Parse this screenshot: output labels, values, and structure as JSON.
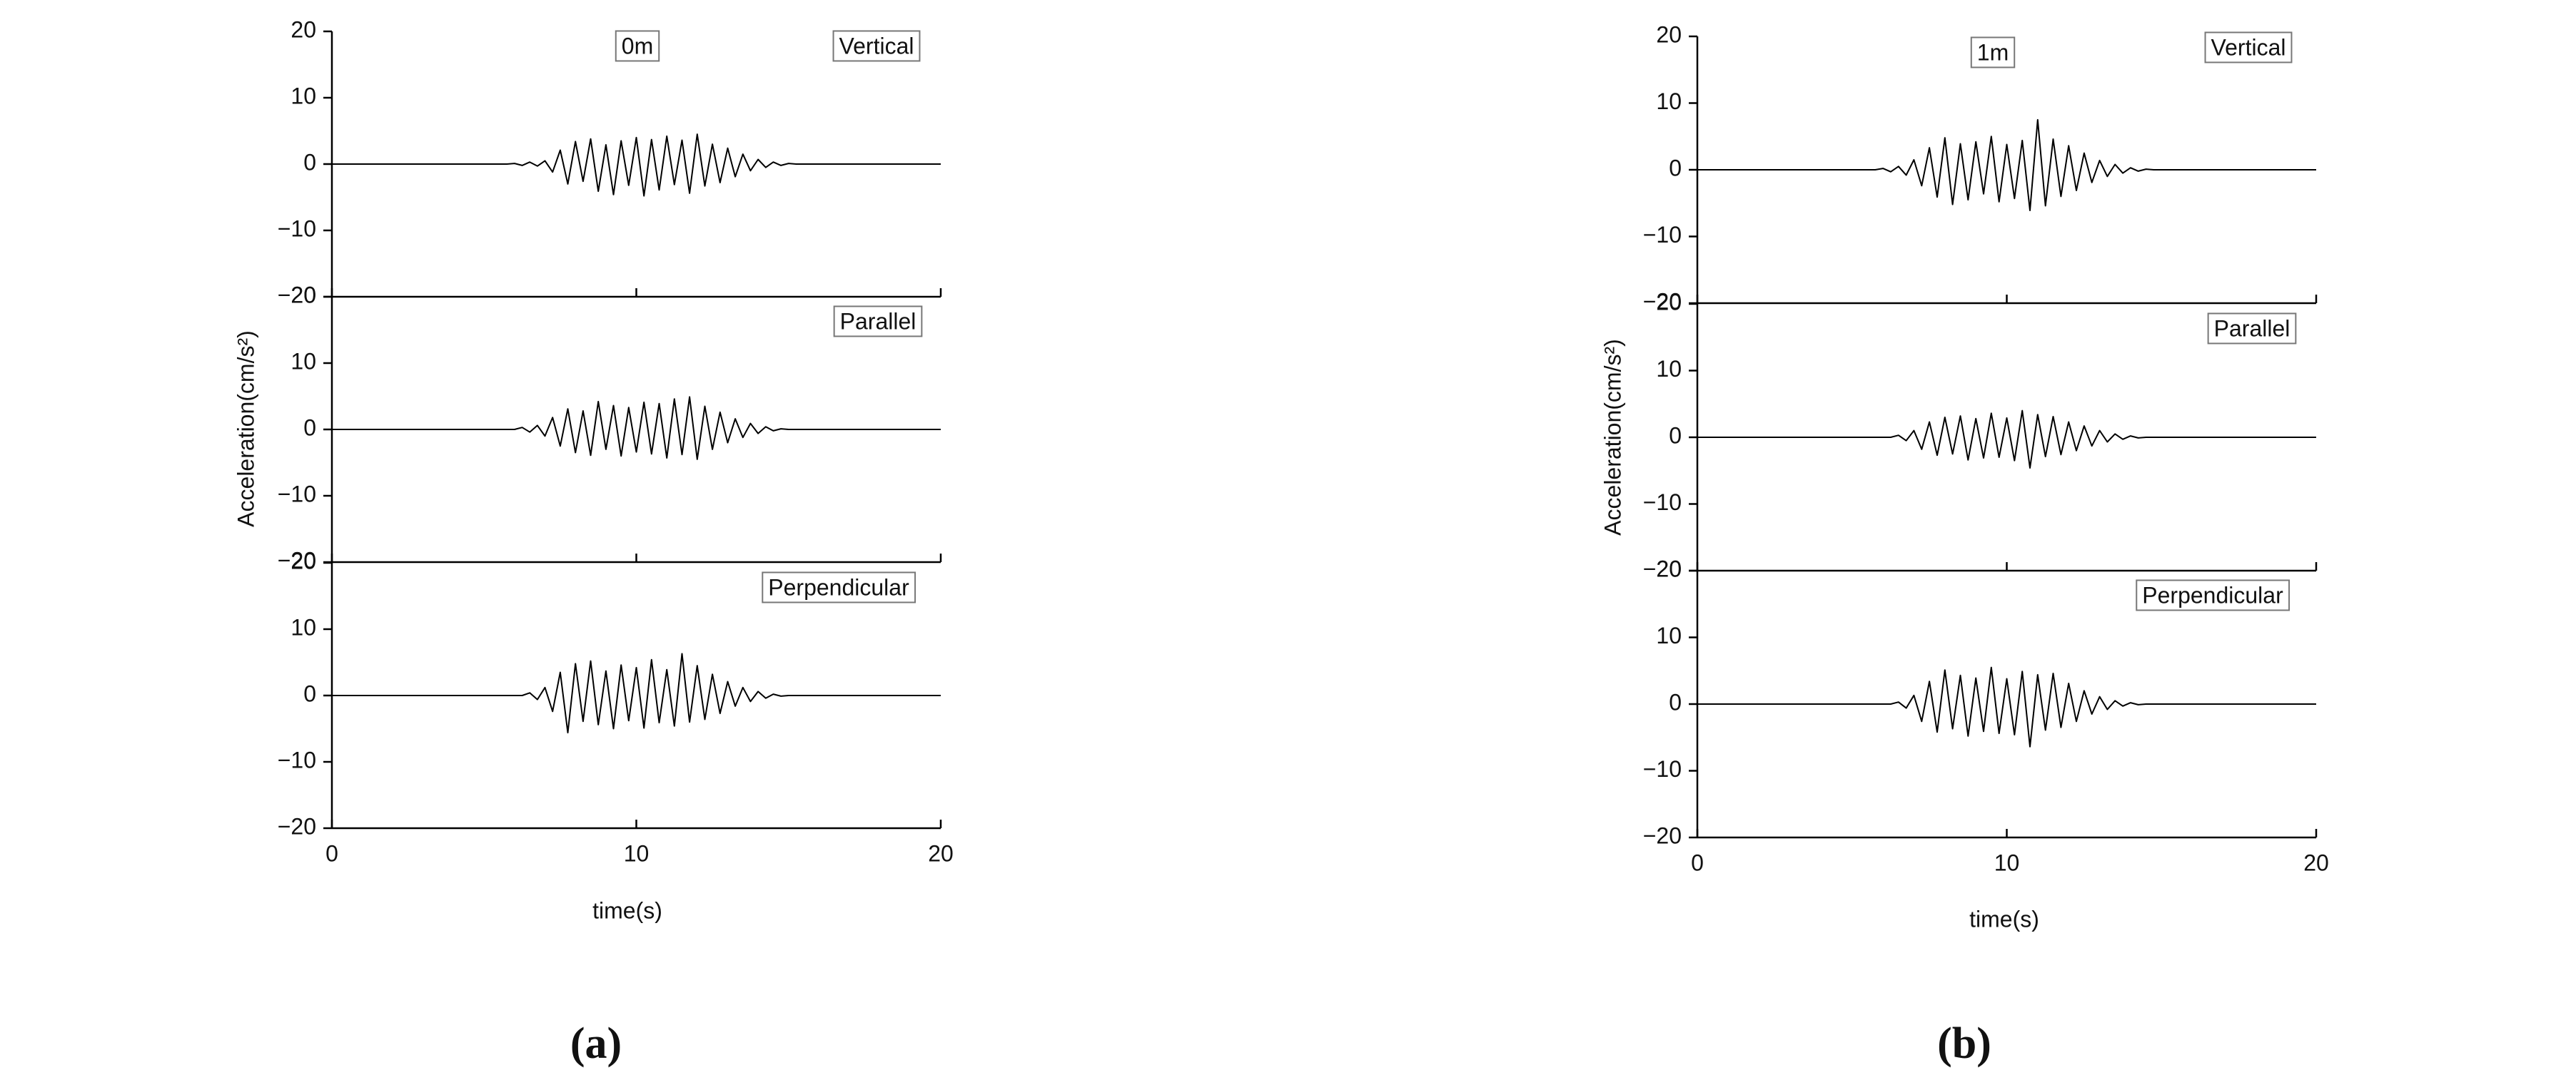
{
  "chart_data": [
    {
      "type": "line",
      "layout": "stacked",
      "title": "0m",
      "xlabel": "time(s)",
      "ylabel": "Acceleration(cm/s²)",
      "caption": "(a)",
      "xlim": [
        0,
        20
      ],
      "xticks": [
        0,
        10,
        20
      ],
      "ylim": [
        -20,
        20
      ],
      "yticks": [
        {
          "value": -20,
          "label": "−20"
        },
        {
          "value": -10,
          "label": "−10"
        },
        0,
        10,
        20
      ],
      "x": [
        0,
        0.25,
        0.5,
        0.75,
        1,
        1.25,
        1.5,
        1.75,
        2,
        2.25,
        2.5,
        2.75,
        3,
        3.25,
        3.5,
        3.75,
        4,
        4.25,
        4.5,
        4.75,
        5,
        5.25,
        5.5,
        5.75,
        6,
        6.25,
        6.5,
        6.75,
        7,
        7.25,
        7.5,
        7.75,
        8,
        8.25,
        8.5,
        8.75,
        9,
        9.25,
        9.5,
        9.75,
        10,
        10.25,
        10.5,
        10.75,
        11,
        11.25,
        11.5,
        11.75,
        12,
        12.25,
        12.5,
        12.75,
        13,
        13.25,
        13.5,
        13.75,
        14,
        14.25,
        14.5,
        14.75,
        15,
        15.25,
        15.5,
        15.75,
        16,
        16.25,
        16.5,
        16.75,
        17,
        17.25,
        17.5,
        17.75,
        18,
        18.25,
        18.5,
        18.75,
        19,
        19.25,
        19.5,
        19.75,
        20
      ],
      "series": [
        {
          "name": "Vertical",
          "color": "#000000",
          "values": [
            0,
            0,
            0,
            0,
            0,
            0,
            0,
            0,
            0,
            0,
            0,
            0,
            0,
            0,
            0,
            0,
            0,
            0,
            0,
            0,
            0,
            0,
            0,
            0,
            0.1,
            -0.2,
            0.3,
            -0.3,
            0.5,
            -1.2,
            2.1,
            -3.0,
            3.4,
            -2.6,
            3.8,
            -4.1,
            2.9,
            -4.6,
            3.5,
            -3.2,
            4.0,
            -4.8,
            3.7,
            -3.9,
            4.2,
            -3.1,
            3.6,
            -4.4,
            4.5,
            -3.3,
            3.0,
            -2.8,
            2.4,
            -1.9,
            1.5,
            -1.0,
            0.7,
            -0.5,
            0.3,
            -0.2,
            0.1,
            0,
            0,
            0,
            0,
            0,
            0,
            0,
            0,
            0,
            0,
            0,
            0,
            0,
            0,
            0,
            0,
            0,
            0,
            0,
            0
          ]
        },
        {
          "name": "Parallel",
          "color": "#000000",
          "values": [
            0,
            0,
            0,
            0,
            0,
            0,
            0,
            0,
            0,
            0,
            0,
            0,
            0,
            0,
            0,
            0,
            0,
            0,
            0,
            0,
            0,
            0,
            0,
            0,
            0,
            0.3,
            -0.4,
            0.6,
            -1.0,
            1.8,
            -2.5,
            3.1,
            -3.5,
            2.8,
            -3.9,
            4.2,
            -3.0,
            3.6,
            -4.0,
            3.3,
            -3.4,
            4.1,
            -3.7,
            3.9,
            -4.3,
            4.6,
            -3.8,
            4.9,
            -4.5,
            3.5,
            -3.0,
            2.6,
            -2.0,
            1.6,
            -1.2,
            0.9,
            -0.6,
            0.4,
            -0.2,
            0.1,
            0,
            0,
            0,
            0,
            0,
            0,
            0,
            0,
            0,
            0,
            0,
            0,
            0,
            0,
            0,
            0,
            0,
            0,
            0,
            0,
            0
          ]
        },
        {
          "name": "Perpendicular",
          "color": "#000000",
          "values": [
            0,
            0,
            0,
            0,
            0,
            0,
            0,
            0,
            0,
            0,
            0,
            0,
            0,
            0,
            0,
            0,
            0,
            0,
            0,
            0,
            0,
            0,
            0,
            0,
            0,
            0,
            0.4,
            -0.6,
            1.2,
            -2.4,
            3.5,
            -5.6,
            4.8,
            -3.9,
            5.2,
            -4.4,
            3.7,
            -5.0,
            4.6,
            -3.8,
            4.2,
            -4.9,
            5.4,
            -4.1,
            3.9,
            -4.6,
            6.3,
            -4.0,
            4.5,
            -3.6,
            3.2,
            -2.7,
            2.1,
            -1.6,
            1.2,
            -0.9,
            0.6,
            -0.4,
            0.2,
            -0.1,
            0,
            0,
            0,
            0,
            0,
            0,
            0,
            0,
            0,
            0,
            0,
            0,
            0,
            0,
            0,
            0,
            0,
            0,
            0,
            0,
            0
          ]
        }
      ]
    },
    {
      "type": "line",
      "layout": "stacked",
      "title": "1m",
      "xlabel": "time(s)",
      "ylabel": "Acceleration(cm/s²)",
      "caption": "(b)",
      "xlim": [
        0,
        20
      ],
      "xticks": [
        0,
        10,
        20
      ],
      "ylim": [
        -20,
        20
      ],
      "yticks": [
        {
          "value": -20,
          "label": "−20"
        },
        {
          "value": -10,
          "label": "−10"
        },
        0,
        10,
        20
      ],
      "x": [
        0,
        0.25,
        0.5,
        0.75,
        1,
        1.25,
        1.5,
        1.75,
        2,
        2.25,
        2.5,
        2.75,
        3,
        3.25,
        3.5,
        3.75,
        4,
        4.25,
        4.5,
        4.75,
        5,
        5.25,
        5.5,
        5.75,
        6,
        6.25,
        6.5,
        6.75,
        7,
        7.25,
        7.5,
        7.75,
        8,
        8.25,
        8.5,
        8.75,
        9,
        9.25,
        9.5,
        9.75,
        10,
        10.25,
        10.5,
        10.75,
        11,
        11.25,
        11.5,
        11.75,
        12,
        12.25,
        12.5,
        12.75,
        13,
        13.25,
        13.5,
        13.75,
        14,
        14.25,
        14.5,
        14.75,
        15,
        15.25,
        15.5,
        15.75,
        16,
        16.25,
        16.5,
        16.75,
        17,
        17.25,
        17.5,
        17.75,
        18,
        18.25,
        18.5,
        18.75,
        19,
        19.25,
        19.5,
        19.75,
        20
      ],
      "series": [
        {
          "name": "Vertical",
          "color": "#000000",
          "values": [
            0,
            0,
            0,
            0,
            0,
            0,
            0,
            0,
            0,
            0,
            0,
            0,
            0,
            0,
            0,
            0,
            0,
            0,
            0,
            0,
            0,
            0,
            0,
            0,
            0.2,
            -0.3,
            0.5,
            -0.8,
            1.5,
            -2.4,
            3.3,
            -4.1,
            4.8,
            -5.2,
            3.9,
            -4.5,
            4.2,
            -3.6,
            5.0,
            -4.8,
            3.8,
            -4.3,
            4.4,
            -6.1,
            7.5,
            -5.4,
            4.6,
            -4.0,
            3.6,
            -3.1,
            2.5,
            -1.9,
            1.4,
            -1.0,
            0.8,
            -0.5,
            0.3,
            -0.2,
            0.1,
            0,
            0,
            0,
            0,
            0,
            0,
            0,
            0,
            0,
            0,
            0,
            0,
            0,
            0,
            0,
            0,
            0,
            0,
            0,
            0,
            0,
            0
          ]
        },
        {
          "name": "Parallel",
          "color": "#000000",
          "values": [
            0,
            0,
            0,
            0,
            0,
            0,
            0,
            0,
            0,
            0,
            0,
            0,
            0,
            0,
            0,
            0,
            0,
            0,
            0,
            0,
            0,
            0,
            0,
            0,
            0,
            0,
            0.3,
            -0.5,
            1.0,
            -1.8,
            2.3,
            -2.7,
            3.0,
            -2.5,
            3.2,
            -3.4,
            2.8,
            -3.1,
            3.6,
            -3.0,
            2.9,
            -3.5,
            4.0,
            -4.6,
            3.4,
            -2.9,
            3.1,
            -2.6,
            2.3,
            -2.0,
            1.7,
            -1.3,
            1.0,
            -0.7,
            0.5,
            -0.3,
            0.2,
            -0.1,
            0,
            0,
            0,
            0,
            0,
            0,
            0,
            0,
            0,
            0,
            0,
            0,
            0,
            0,
            0,
            0,
            0,
            0,
            0,
            0,
            0,
            0,
            0
          ]
        },
        {
          "name": "Perpendicular",
          "color": "#000000",
          "values": [
            0,
            0,
            0,
            0,
            0,
            0,
            0,
            0,
            0,
            0,
            0,
            0,
            0,
            0,
            0,
            0,
            0,
            0,
            0,
            0,
            0,
            0,
            0,
            0,
            0,
            0,
            0.3,
            -0.6,
            1.3,
            -2.6,
            3.4,
            -4.2,
            5.1,
            -3.7,
            4.3,
            -4.8,
            3.9,
            -4.1,
            5.5,
            -4.4,
            3.8,
            -4.6,
            4.9,
            -6.4,
            4.4,
            -3.9,
            4.6,
            -3.5,
            3.1,
            -2.6,
            2.0,
            -1.5,
            1.1,
            -0.8,
            0.5,
            -0.3,
            0.2,
            -0.1,
            0,
            0,
            0,
            0,
            0,
            0,
            0,
            0,
            0,
            0,
            0,
            0,
            0,
            0,
            0,
            0,
            0,
            0,
            0,
            0,
            0,
            0,
            0
          ]
        }
      ]
    }
  ]
}
